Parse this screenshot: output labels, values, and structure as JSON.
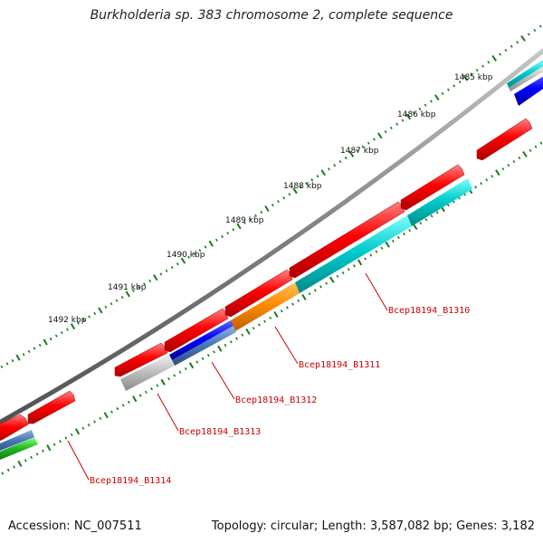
{
  "title": "Burkholderia sp. 383 chromosome 2, complete sequence",
  "footer": {
    "accession": "Accession: NC_007511",
    "summary": "Topology: circular; Length: 3,587,082 bp; Genes: 3,182"
  },
  "kbp_labels": [
    "1485 kbp",
    "1486 kbp",
    "1487 kbp",
    "1488 kbp",
    "1489 kbp",
    "1490 kbp",
    "1491 kbp",
    "1492 kbp"
  ],
  "gene_labels": [
    "Bcep18194_B1310",
    "Bcep18194_B1311",
    "Bcep18194_B1312",
    "Bcep18194_B1313",
    "Bcep18194_B1314"
  ],
  "colors": {
    "backbone": "#808080",
    "forward_cds": "#ff0000",
    "label": "#cc0000",
    "tick": "#1a7a1a",
    "cyan": "#00cccc",
    "orange": "#ff8c00",
    "blue": "#0000ff",
    "steelblue": "#4a7ab8",
    "gray": "#b8b8b8",
    "green": "#22bb22"
  }
}
